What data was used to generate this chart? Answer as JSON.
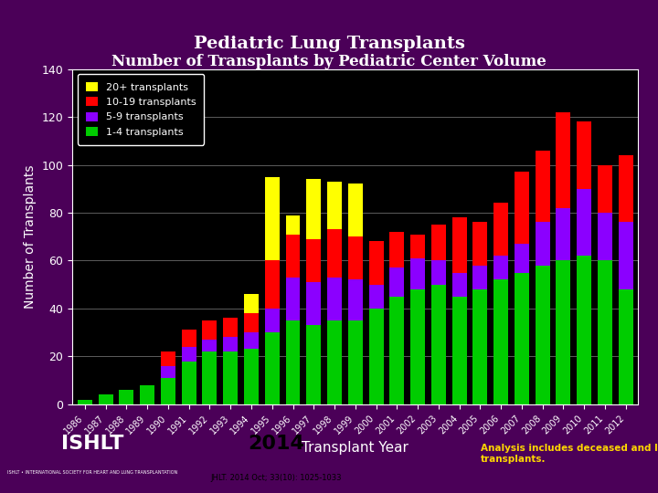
{
  "title1": "Pediatric Lung Transplants",
  "title2": "Number of Transplants by Pediatric Center Volume",
  "xlabel": "Transplant Year",
  "ylabel": "Number of Transplants",
  "years": [
    "1986",
    "1987",
    "1988",
    "1989",
    "1990",
    "1991",
    "1992",
    "1993",
    "1994",
    "1995",
    "1996",
    "1997",
    "1998",
    "1999",
    "2000",
    "2001",
    "2002",
    "2003",
    "2004",
    "2005",
    "2006",
    "2007",
    "2008",
    "2009",
    "2010",
    "2011",
    "2012"
  ],
  "green": [
    2,
    4,
    6,
    8,
    11,
    18,
    22,
    22,
    23,
    30,
    35,
    33,
    35,
    35,
    40,
    45,
    48,
    50,
    45,
    48,
    52,
    55,
    58,
    60,
    62,
    60,
    48
  ],
  "purple": [
    0,
    0,
    0,
    0,
    5,
    6,
    5,
    6,
    7,
    10,
    18,
    18,
    18,
    17,
    10,
    12,
    13,
    10,
    10,
    10,
    10,
    12,
    18,
    22,
    28,
    20,
    28
  ],
  "red": [
    0,
    0,
    0,
    0,
    6,
    7,
    8,
    8,
    8,
    20,
    18,
    18,
    20,
    18,
    18,
    15,
    10,
    15,
    23,
    18,
    22,
    30,
    30,
    40,
    28,
    20,
    28
  ],
  "yellow": [
    0,
    0,
    0,
    0,
    0,
    0,
    0,
    0,
    8,
    35,
    8,
    25,
    20,
    22,
    0,
    0,
    0,
    0,
    0,
    0,
    0,
    0,
    0,
    0,
    0,
    0,
    0
  ],
  "legend_labels": [
    "20+ transplants",
    "10-19 transplants",
    "5-9 transplants",
    "1-4 transplants"
  ],
  "colors": [
    "#FFFF00",
    "#FF0000",
    "#8B00FF",
    "#00CC00"
  ],
  "ylim": [
    0,
    140
  ],
  "yticks": [
    0,
    20,
    40,
    60,
    80,
    100,
    120,
    140
  ],
  "bg_color": "#000000",
  "outer_bg": "#4B0058",
  "title_color": "#FFFFFF",
  "axis_color": "#FFFFFF",
  "grid_color": "#808080",
  "footer_bg": "#FFFFFF",
  "footer_year": "2014",
  "footer_journal": "JHLT. 2014 Oct; 33(10): 1025-1033",
  "footer_note": "Analysis includes deceased and living donor\ntransplants."
}
